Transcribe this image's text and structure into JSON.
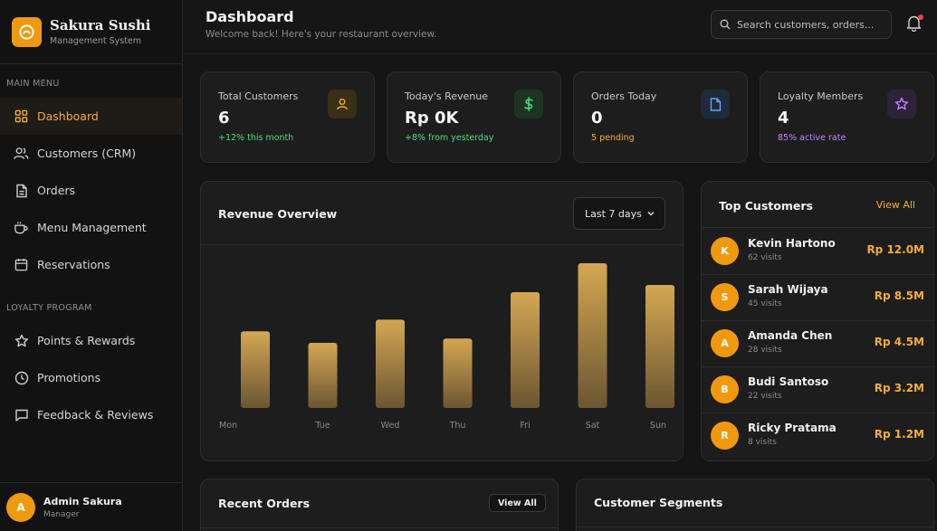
{
  "brand": {
    "name": "Sakura Sushi",
    "subtitle": "Management System"
  },
  "sidebar": {
    "main_label": "MAIN MENU",
    "main_items": [
      {
        "label": "Dashboard",
        "icon": "grid-icon"
      },
      {
        "label": "Customers (CRM)",
        "icon": "users-icon"
      },
      {
        "label": "Orders",
        "icon": "document-icon"
      },
      {
        "label": "Menu Management",
        "icon": "cup-icon"
      },
      {
        "label": "Reservations",
        "icon": "calendar-icon"
      }
    ],
    "loyalty_label": "LOYALTY PROGRAM",
    "loyalty_items": [
      {
        "label": "Points & Rewards",
        "icon": "star-icon"
      },
      {
        "label": "Promotions",
        "icon": "clock-icon"
      },
      {
        "label": "Feedback & Reviews",
        "icon": "chat-icon"
      }
    ],
    "user": {
      "initial": "A",
      "name": "Admin Sakura",
      "role": "Manager"
    }
  },
  "header": {
    "title": "Dashboard",
    "subtitle": "Welcome back! Here's your restaurant overview.",
    "search_placeholder": "Search customers, orders..."
  },
  "stats": [
    {
      "label": "Total Customers",
      "value": "6",
      "note": "+12% this month",
      "note_color": "#4ade80",
      "icon": "user-icon",
      "icon_color": "#f4ae35",
      "icon_bg": "#3a2f17"
    },
    {
      "label": "Today's Revenue",
      "value": "Rp 0K",
      "note": "+8% from yesterday",
      "note_color": "#4ade80",
      "icon": "dollar-icon",
      "icon_color": "#4ade80",
      "icon_bg": "#1e3324"
    },
    {
      "label": "Orders Today",
      "value": "0",
      "note": "5 pending",
      "note_color": "#f4ae35",
      "icon": "file-icon",
      "icon_color": "#60a5fa",
      "icon_bg": "#1f2a3a"
    },
    {
      "label": "Loyalty Members",
      "value": "4",
      "note": "85% active rate",
      "note_color": "#c084fc",
      "icon": "star-icon",
      "icon_color": "#c084fc",
      "icon_bg": "#2e2239"
    }
  ],
  "revenue": {
    "title": "Revenue Overview",
    "range_label": "Last 7 days"
  },
  "chart_data": {
    "type": "bar",
    "categories": [
      "Mon",
      "Tue",
      "Wed",
      "Thu",
      "Fri",
      "Sat",
      "Sun"
    ],
    "values": [
      53,
      45,
      61,
      48,
      80,
      100,
      85
    ],
    "ylim": [
      0,
      100
    ],
    "grid": false,
    "bar_color_top": "#d4a752",
    "bar_color_bottom": "#6b5632"
  },
  "top_customers": {
    "title": "Top Customers",
    "view_all": "View All",
    "items": [
      {
        "initial": "K",
        "name": "Kevin Hartono",
        "visits": "62 visits",
        "amount": "Rp 12.0M"
      },
      {
        "initial": "S",
        "name": "Sarah Wijaya",
        "visits": "45 visits",
        "amount": "Rp 8.5M"
      },
      {
        "initial": "A",
        "name": "Amanda Chen",
        "visits": "28 visits",
        "amount": "Rp 4.5M"
      },
      {
        "initial": "B",
        "name": "Budi Santoso",
        "visits": "22 visits",
        "amount": "Rp 3.2M"
      },
      {
        "initial": "R",
        "name": "Ricky Pratama",
        "visits": "8 visits",
        "amount": "Rp 1.2M"
      }
    ]
  },
  "recent_orders": {
    "title": "Recent Orders",
    "view_all": "View All"
  },
  "segments": {
    "title": "Customer Segments"
  }
}
